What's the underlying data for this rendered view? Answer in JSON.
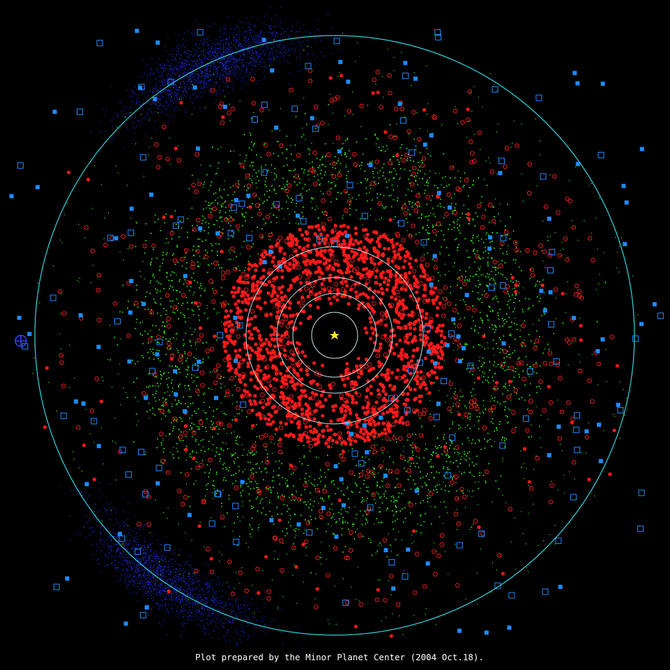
{
  "caption": "Plot prepared by the Minor Planet Center (2004 Oct.18)."
}
